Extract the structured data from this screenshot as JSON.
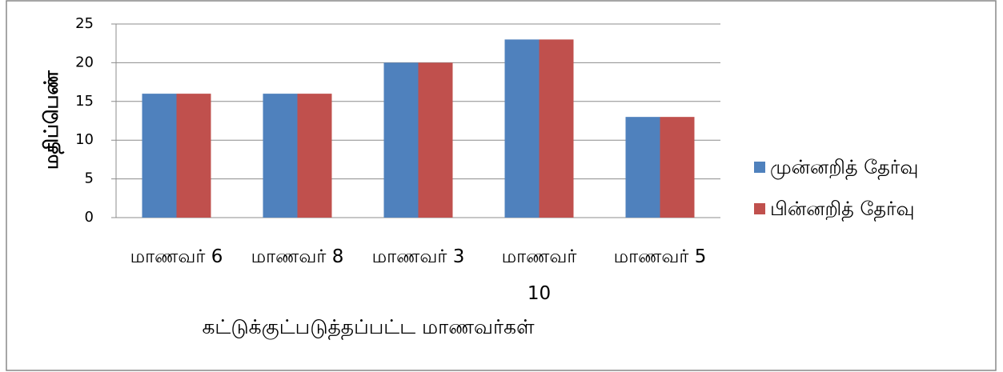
{
  "chart_data": {
    "type": "bar",
    "categories": [
      "மாணவர் 6",
      "மாணவர் 8",
      "மாணவர் 3",
      "மாணவர் 10",
      "மாணவர் 5"
    ],
    "series": [
      {
        "name": "முன்னறித் தேர்வு",
        "color": "#4f81bd",
        "values": [
          16,
          16,
          20,
          23,
          13
        ]
      },
      {
        "name": "பின்னறித் தேர்வு",
        "color": "#c0504d",
        "values": [
          16,
          16,
          20,
          23,
          13
        ]
      }
    ],
    "xlabel": "கட்டுக்குட்படுத்தப்பட்ட மாணவர்கள்",
    "ylabel": "மதிப்பெண்",
    "ylim": [
      0,
      25
    ],
    "yticks": [
      0,
      5,
      10,
      15,
      20,
      25
    ],
    "grid": true,
    "legend": "right"
  }
}
